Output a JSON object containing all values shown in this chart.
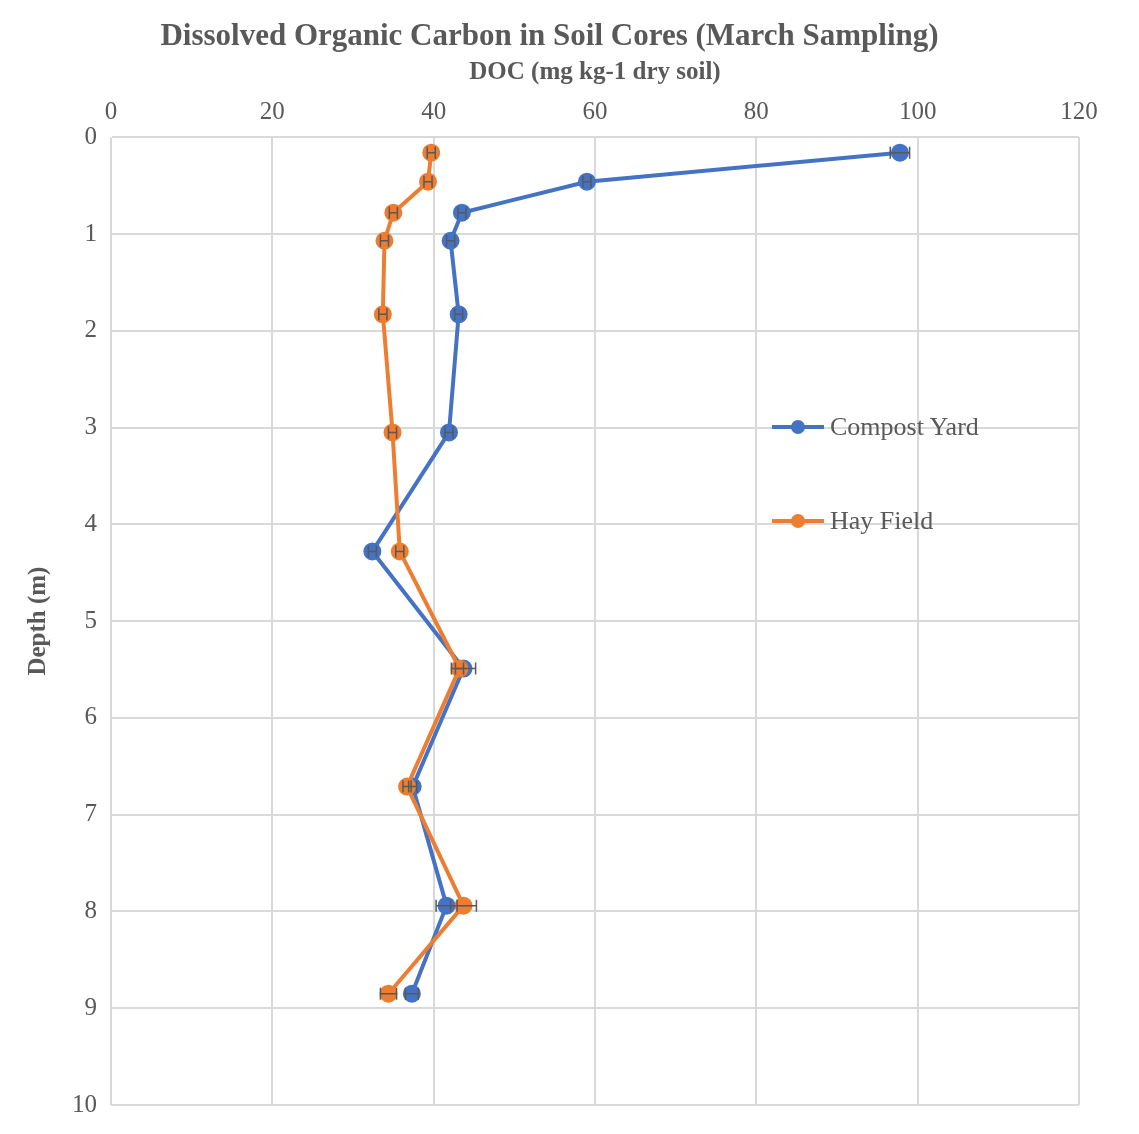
{
  "chart_data": {
    "type": "line",
    "title": "Dissolved Organic Carbon in Soil Cores (March Sampling)",
    "xlabel": "DOC (mg kg-1 dry soil)",
    "ylabel": "Depth (m)",
    "xlim": [
      0,
      120
    ],
    "xticks": [
      0,
      20,
      40,
      60,
      80,
      100,
      120
    ],
    "ylim": [
      10,
      0
    ],
    "yticks": [
      0,
      1,
      2,
      3,
      4,
      5,
      6,
      7,
      8,
      9,
      10
    ],
    "grid": true,
    "legend": "right",
    "marker": "circle",
    "line_style": "solid",
    "series": [
      {
        "name": "Compost Yard",
        "color": "#4472c4",
        "x": [
          97.8,
          59.0,
          43.5,
          42.1,
          43.1,
          41.9,
          32.4,
          43.7,
          37.4,
          41.6,
          37.3
        ],
        "values": [
          0.16,
          0.46,
          0.78,
          1.07,
          1.83,
          3.05,
          4.28,
          5.49,
          6.71,
          7.94,
          8.85
        ],
        "xerrors": [
          1.2,
          0.5,
          0.5,
          0.5,
          0.5,
          0.5,
          0.5,
          1.5,
          0.5,
          1.3,
          0.8
        ]
      },
      {
        "name": "Hay Field",
        "color": "#ed7d31",
        "x": [
          39.7,
          39.3,
          35.0,
          33.9,
          33.7,
          34.9,
          35.8,
          43.2,
          36.7,
          43.7,
          34.4
        ],
        "values": [
          0.16,
          0.46,
          0.78,
          1.07,
          1.83,
          3.05,
          4.28,
          5.49,
          6.71,
          7.94,
          8.85
        ],
        "xerrors": [
          0.5,
          0.5,
          0.5,
          0.5,
          0.5,
          0.5,
          0.5,
          0.5,
          0.5,
          1.6,
          1.0
        ]
      }
    ]
  }
}
